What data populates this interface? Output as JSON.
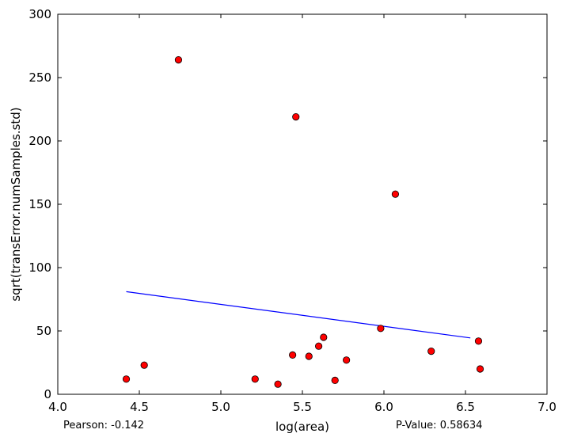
{
  "chart_data": {
    "type": "scatter",
    "title": "",
    "xlabel": "log(area)",
    "ylabel": "sqrt(transError.numSamples.std)",
    "xlim": [
      4.0,
      7.0
    ],
    "ylim": [
      0,
      300
    ],
    "x_ticks": [
      "4.0",
      "4.5",
      "5.0",
      "5.5",
      "6.0",
      "6.5",
      "7.0"
    ],
    "y_ticks": [
      "0",
      "50",
      "100",
      "150",
      "200",
      "250",
      "300"
    ],
    "grid": false,
    "legend": "none",
    "marker_color": "#ff0000",
    "line_color": "#0000ff",
    "points": [
      {
        "x": 4.42,
        "y": 12
      },
      {
        "x": 4.53,
        "y": 23
      },
      {
        "x": 4.74,
        "y": 264
      },
      {
        "x": 5.21,
        "y": 12
      },
      {
        "x": 5.35,
        "y": 8
      },
      {
        "x": 5.44,
        "y": 31
      },
      {
        "x": 5.46,
        "y": 219
      },
      {
        "x": 5.54,
        "y": 30
      },
      {
        "x": 5.6,
        "y": 38
      },
      {
        "x": 5.63,
        "y": 45
      },
      {
        "x": 5.7,
        "y": 11
      },
      {
        "x": 5.77,
        "y": 27
      },
      {
        "x": 5.98,
        "y": 52
      },
      {
        "x": 6.07,
        "y": 158
      },
      {
        "x": 6.29,
        "y": 34
      },
      {
        "x": 6.58,
        "y": 42
      },
      {
        "x": 6.59,
        "y": 20
      }
    ],
    "fit_line": {
      "x1": 4.42,
      "y1": 81,
      "x2": 6.53,
      "y2": 44.5
    }
  },
  "stats": {
    "pearson": "Pearson: -0.142",
    "pvalue": "P-Value: 0.58634"
  }
}
